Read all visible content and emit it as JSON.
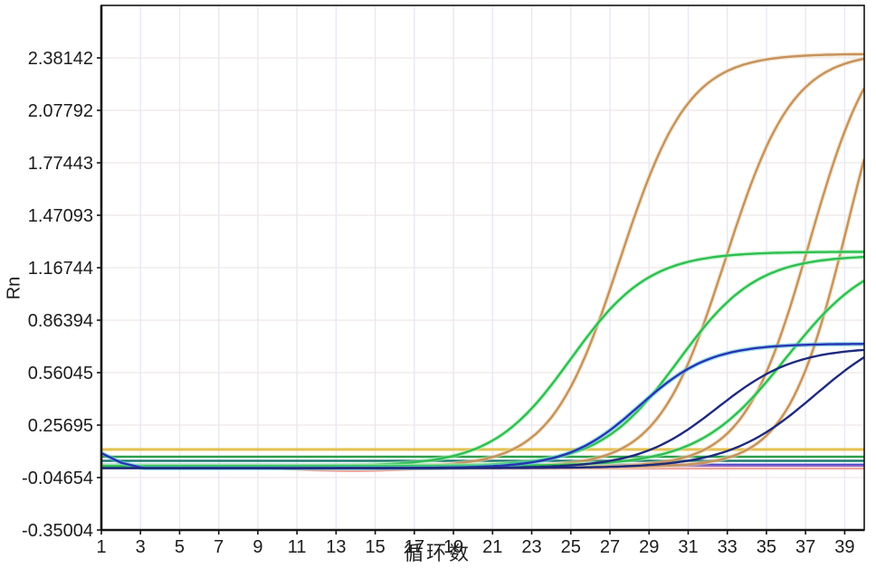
{
  "figure": {
    "background": "#ffffff"
  },
  "chart_data": {
    "type": "line",
    "title": "",
    "xlabel": "循环数",
    "ylabel": "Rn",
    "x_min": 1,
    "x_max": 40,
    "y_min": -0.35004,
    "y_max": 2.68492,
    "grid": true,
    "legend": false,
    "x_ticks": [
      1,
      3,
      5,
      7,
      9,
      11,
      13,
      15,
      17,
      19,
      21,
      23,
      25,
      27,
      29,
      31,
      33,
      35,
      37,
      39
    ],
    "y_tick_labels": [
      "-0.35004",
      "-0.04654",
      "0.25695",
      "0.56045",
      "0.86394",
      "1.16744",
      "1.47093",
      "1.77443",
      "2.07792",
      "2.38142"
    ],
    "threshold": {
      "name": "threshold-line",
      "value": 0.116,
      "color": "#E4C255"
    },
    "series": [
      {
        "name": "orange-curve-1",
        "color": "#C6925C",
        "halo": "#ECD7B2",
        "baseline": 0.015,
        "amplitude": 2.39,
        "midpoint": 27.5,
        "slope": 0.57,
        "ct": 22.0,
        "rn_at_cycle_40": 2.4
      },
      {
        "name": "orange-curve-2",
        "color": "#C6925C",
        "halo": "#ECD7B2",
        "baseline": 0.015,
        "amplitude": 2.4,
        "midpoint": 32.9,
        "slope": 0.58,
        "ct": 27.4,
        "rn_at_cycle_40": 2.38
      },
      {
        "name": "orange-curve-3",
        "color": "#C6925C",
        "halo": "#ECD7B2",
        "baseline": 0.015,
        "amplitude": 2.6,
        "midpoint": 37.2,
        "slope": 0.6,
        "ct": 31.8,
        "rn_at_cycle_40": 2.21
      },
      {
        "name": "orange-curve-4",
        "color": "#C6925C",
        "halo": "#ECD7B2",
        "baseline": 0.015,
        "amplitude": 2.85,
        "midpoint": 39.2,
        "slope": 0.64,
        "ct": 34.0,
        "rn_at_cycle_40": 1.8
      },
      {
        "name": "green-curve-1",
        "color": "#2FBE52",
        "halo": "#A5ECB0",
        "baseline": 0.02,
        "amplitude": 1.24,
        "midpoint": 25.0,
        "slope": 0.5,
        "ct": 20.5,
        "rn_at_cycle_40": 1.26
      },
      {
        "name": "green-curve-2",
        "color": "#2FBE52",
        "halo": "#A5ECB0",
        "baseline": 0.02,
        "amplitude": 1.22,
        "midpoint": 30.5,
        "slope": 0.5,
        "ct": 25.4,
        "rn_at_cycle_40": 1.23
      },
      {
        "name": "green-curve-3",
        "color": "#2FBE52",
        "halo": "#A5ECB0",
        "baseline": 0.02,
        "amplitude": 1.25,
        "midpoint": 36.0,
        "slope": 0.45,
        "ct": 30.4,
        "rn_at_cycle_40": 1.09
      },
      {
        "name": "blue-curve-1",
        "color": "#2733B4",
        "halo": "#55C8D8",
        "baseline": 0.008,
        "amplitude": 0.72,
        "midpoint": 28.5,
        "slope": 0.55,
        "ct": 25.2,
        "rn_at_cycle_40": 0.73,
        "prefix": [
          0.095,
          0.04,
          0.012
        ]
      },
      {
        "name": "blue-curve-2",
        "color": "#1E2A7E",
        "halo": "",
        "baseline": 0.008,
        "amplitude": 0.7,
        "midpoint": 32.5,
        "slope": 0.5,
        "ct": 29.0,
        "rn_at_cycle_40": 0.7
      },
      {
        "name": "blue-curve-3",
        "color": "#1E2A7E",
        "halo": "",
        "baseline": 0.008,
        "amplitude": 0.85,
        "midpoint": 37.5,
        "slope": 0.45,
        "ct": 33.5,
        "rn_at_cycle_40": 0.65
      }
    ],
    "flat_series": [
      {
        "name": "flat-line-green",
        "color": "#2E9F4B",
        "value": 0.074
      },
      {
        "name": "flat-line-teal",
        "color": "#1F7A70",
        "value": 0.05
      },
      {
        "name": "flat-line-blue",
        "color": "#2B3CC8",
        "value": 0.028
      },
      {
        "name": "flat-line-purple",
        "color": "#8F65C5",
        "value": 0.022
      },
      {
        "name": "flat-line-pink",
        "color": "#EFA69E",
        "values": [
          0.014,
          0.014,
          0.014,
          0.014,
          0.013,
          0.013,
          0.012,
          0.011,
          0.009,
          0.005,
          0.0,
          -0.005,
          -0.008,
          -0.009,
          -0.007,
          -0.003,
          0.001,
          0.003,
          0.004,
          0.005,
          0.005,
          0.005,
          0.005,
          0.005,
          0.005,
          0.005,
          0.005,
          0.005,
          0.005,
          0.005,
          0.005,
          0.005,
          0.005,
          0.005,
          0.005,
          0.005,
          0.005,
          0.005,
          0.005,
          0.005
        ]
      }
    ],
    "style": {
      "grid_color_vertical": "#E8E8F2",
      "grid_color_horizontal": "#F2EBEC",
      "axis_color": "#141414",
      "tick_label_color": "#1c1c1c"
    }
  }
}
